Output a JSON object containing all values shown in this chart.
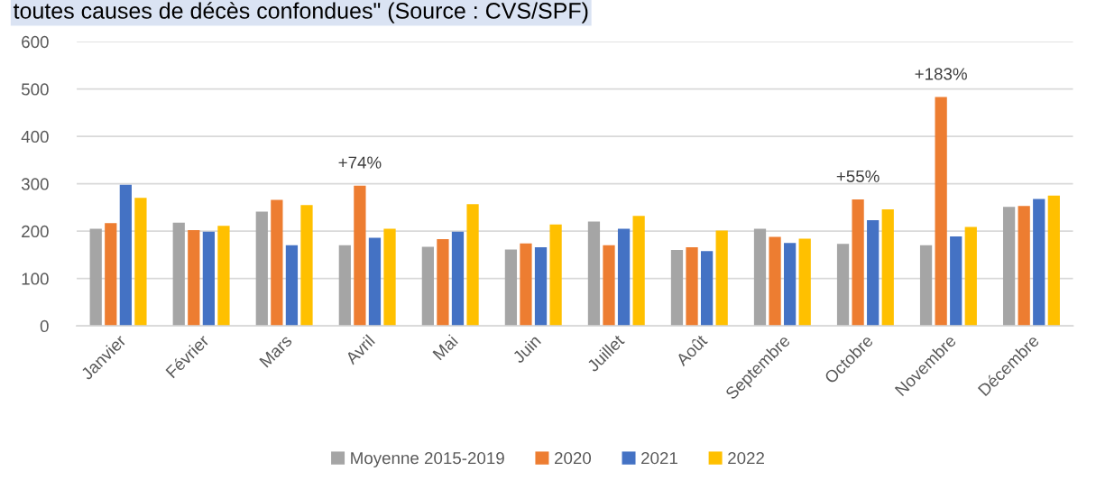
{
  "chart_data": {
    "type": "bar",
    "title": "toutes causes de décès confondues\" (Source : CVS/SPF)",
    "categories": [
      "Janvier",
      "Février",
      "Mars",
      "Avril",
      "Mai",
      "Juin",
      "Juillet",
      "Août",
      "Septembre",
      "Octobre",
      "Novembre",
      "Décembre"
    ],
    "series": [
      {
        "name": "Moyenne 2015-2019",
        "color": "#a5a5a5",
        "values": [
          205,
          218,
          241,
          170,
          167,
          161,
          220,
          160,
          205,
          173,
          170,
          251
        ]
      },
      {
        "name": "2020",
        "color": "#ed7d31",
        "values": [
          217,
          202,
          266,
          296,
          183,
          174,
          170,
          166,
          188,
          267,
          483,
          253
        ]
      },
      {
        "name": "2021",
        "color": "#4472c4",
        "values": [
          298,
          199,
          170,
          186,
          199,
          166,
          205,
          158,
          175,
          223,
          189,
          268
        ]
      },
      {
        "name": "2022",
        "color": "#ffc000",
        "values": [
          270,
          211,
          255,
          205,
          257,
          214,
          232,
          201,
          184,
          246,
          209,
          275
        ]
      }
    ],
    "ylim": [
      0,
      600
    ],
    "yticks": [
      0,
      100,
      200,
      300,
      400,
      500,
      600
    ],
    "grid": "y",
    "legend": "bottom",
    "annotations": [
      {
        "text": "+74%",
        "x": "Avril",
        "y": 296
      },
      {
        "text": "+55%",
        "x": "Octobre",
        "y": 267
      },
      {
        "text": "+183%",
        "x": "Novembre",
        "y": 483
      }
    ]
  }
}
